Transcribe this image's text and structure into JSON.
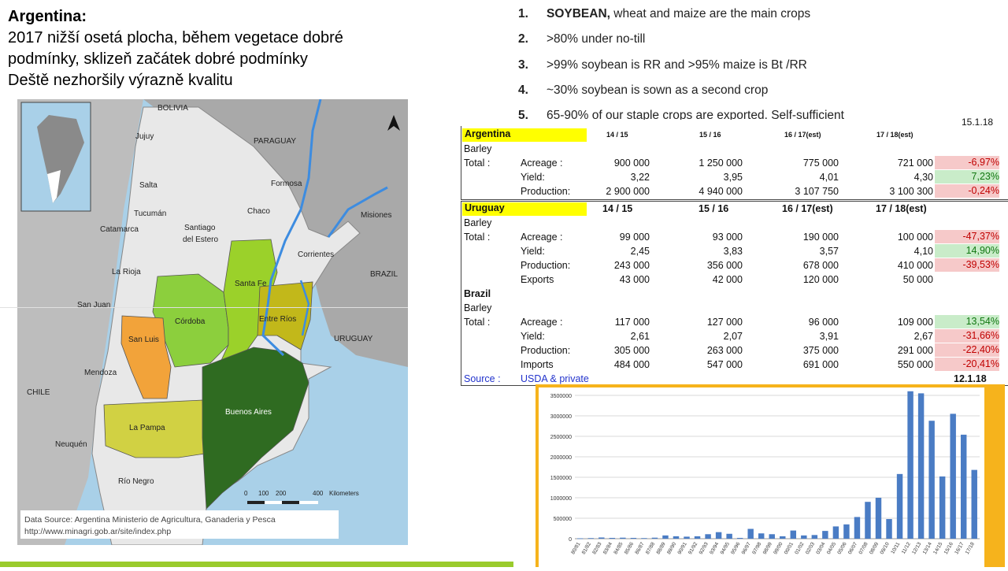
{
  "slide": {
    "title": "Argentina:",
    "lines": [
      "2017 nižší osetá plocha, během vegetace dobré",
      "podmínky, sklizeň začátek dobré podmínky",
      "Deště nezhoršily výrazně kvalitu"
    ]
  },
  "crops_list": [
    {
      "num": "1.",
      "strong": "SOYBEAN,",
      "text": " wheat and maize are the main crops"
    },
    {
      "num": "2.",
      "strong": "",
      "text": ">80% under no-till"
    },
    {
      "num": "3.",
      "strong": "",
      "text": ">99% soybean is RR and >95% maize is Bt /RR"
    },
    {
      "num": "4.",
      "strong": "",
      "text": "~30% soybean is sown as a second crop"
    },
    {
      "num": "5.",
      "strong": "",
      "text": "65-90% of our staple crops are exported. Self-sufficient"
    }
  ],
  "map": {
    "neighbors": [
      "BOLIVIA",
      "PARAGUAY",
      "BRAZIL",
      "URUGUAY",
      "CHILE"
    ],
    "provinces": [
      "Jujuy",
      "Salta",
      "Formosa",
      "Misiones",
      "Chaco",
      "Tucumán",
      "Catamarca",
      "Santiago del Estero",
      "Corrientes",
      "La Rioja",
      "Santa Fe",
      "San Juan",
      "Córdoba",
      "Entre Ríos",
      "San Luis",
      "Mendoza",
      "Buenos Aires",
      "La Pampa",
      "Neuquén",
      "Río Negro"
    ],
    "scale_ticks": [
      "0",
      "100",
      "200",
      "400"
    ],
    "scale_unit": "Kilometers",
    "source_line1": "Data Source: Argentina Ministerio de Agricultura, Ganaderia y Pesca",
    "source_line2": "http://www.minagri.gob.ar/site/index.php",
    "colors": {
      "ocean": "#a9d0e8",
      "neighbor": "#a9a9a9",
      "province": "#e8e8e8",
      "cordoba": "#8ccf3d",
      "santa_fe": "#9bd12a",
      "entre_rios": "#c2b81a",
      "san_luis": "#f2a33a",
      "la_pampa": "#d1d143",
      "buenos_aires": "#2f6b21",
      "river": "#3d8ce0"
    }
  },
  "table": {
    "date_top": "15.1.18",
    "date_bottom": "12.1.18",
    "argentina": {
      "country": "Argentina",
      "crop": "Barley",
      "total": "Total :",
      "seasons": [
        "14 / 15",
        "15 / 16",
        "16 / 17(est)",
        "17 / 18(est)"
      ],
      "rows": [
        {
          "label": "Acreage :",
          "values": [
            "900 000",
            "1 250 000",
            "775 000",
            "721 000"
          ],
          "change": "-6,97%",
          "trend": "bad"
        },
        {
          "label": "Yield:",
          "values": [
            "3,22",
            "3,95",
            "4,01",
            "4,30"
          ],
          "change": "7,23%",
          "trend": "good"
        },
        {
          "label": "Production:",
          "values": [
            "2 900 000",
            "4 940 000",
            "3 107 750",
            "3 100 300"
          ],
          "change": "-0,24%",
          "trend": "bad"
        }
      ]
    },
    "uruguay": {
      "country": "Uruguay",
      "crop": "Barley",
      "total": "Total :",
      "seasons": [
        "14 / 15",
        "15 / 16",
        "16 / 17(est)",
        "17 / 18(est)"
      ],
      "rows": [
        {
          "label": "Acreage :",
          "values": [
            "99 000",
            "93 000",
            "190 000",
            "100 000"
          ],
          "change": "-47,37%",
          "trend": "bad"
        },
        {
          "label": "Yield:",
          "values": [
            "2,45",
            "3,83",
            "3,57",
            "4,10"
          ],
          "change": "14,90%",
          "trend": "good"
        },
        {
          "label": "Production:",
          "values": [
            "243 000",
            "356 000",
            "678 000",
            "410 000"
          ],
          "change": "-39,53%",
          "trend": "bad"
        },
        {
          "label": "Exports",
          "values": [
            "43 000",
            "42 000",
            "120 000",
            "50 000"
          ],
          "change": "",
          "trend": ""
        }
      ]
    },
    "brazil": {
      "country": "Brazil",
      "crop": "Barley",
      "total": "Total :",
      "rows": [
        {
          "label": "Acreage :",
          "values": [
            "117 000",
            "127 000",
            "96 000",
            "109 000"
          ],
          "change": "13,54%",
          "trend": "good"
        },
        {
          "label": "Yield:",
          "values": [
            "2,61",
            "2,07",
            "3,91",
            "2,67"
          ],
          "change": "-31,66%",
          "trend": "bad"
        },
        {
          "label": "Production:",
          "values": [
            "305 000",
            "263 000",
            "375 000",
            "291 000"
          ],
          "change": "-22,40%",
          "trend": "bad"
        },
        {
          "label": "Imports",
          "values": [
            "484 000",
            "547 000",
            "691 000",
            "550 000"
          ],
          "change": "-20,41%",
          "trend": "bad"
        }
      ]
    },
    "source_label": "Source :",
    "source_value": "USDA & private"
  },
  "chart_data": {
    "type": "bar",
    "title": "",
    "xlabel": "",
    "ylabel": "",
    "ylim": [
      0,
      3500000
    ],
    "yticks": [
      0,
      500000,
      1000000,
      1500000,
      2000000,
      2500000,
      3000000,
      3500000
    ],
    "categories": [
      "80/81",
      "81/82",
      "82/83",
      "83/84",
      "84/85",
      "85/86",
      "86/87",
      "87/88",
      "88/89",
      "89/90",
      "90/91",
      "91/92",
      "92/93",
      "93/94",
      "94/95",
      "95/96",
      "96/97",
      "97/98",
      "98/99",
      "99/00",
      "00/01",
      "01/02",
      "02/03",
      "03/04",
      "04/05",
      "05/06",
      "06/07",
      "07/08",
      "08/09",
      "09/10",
      "10/11",
      "11/12",
      "12/13",
      "13/14",
      "14/15",
      "15/16",
      "16/17",
      "17/18"
    ],
    "values": [
      10000,
      15000,
      30000,
      20000,
      25000,
      20000,
      15000,
      25000,
      80000,
      60000,
      50000,
      60000,
      110000,
      160000,
      120000,
      20000,
      240000,
      130000,
      110000,
      60000,
      200000,
      80000,
      90000,
      190000,
      300000,
      350000,
      530000,
      900000,
      1000000,
      480000,
      1580000,
      3600000,
      3550000,
      2880000,
      1520000,
      3050000,
      2540000,
      1680000
    ],
    "bar_color": "#4a7cc4",
    "frame_color": "#f6b31c",
    "grid": true,
    "legend": "none"
  }
}
